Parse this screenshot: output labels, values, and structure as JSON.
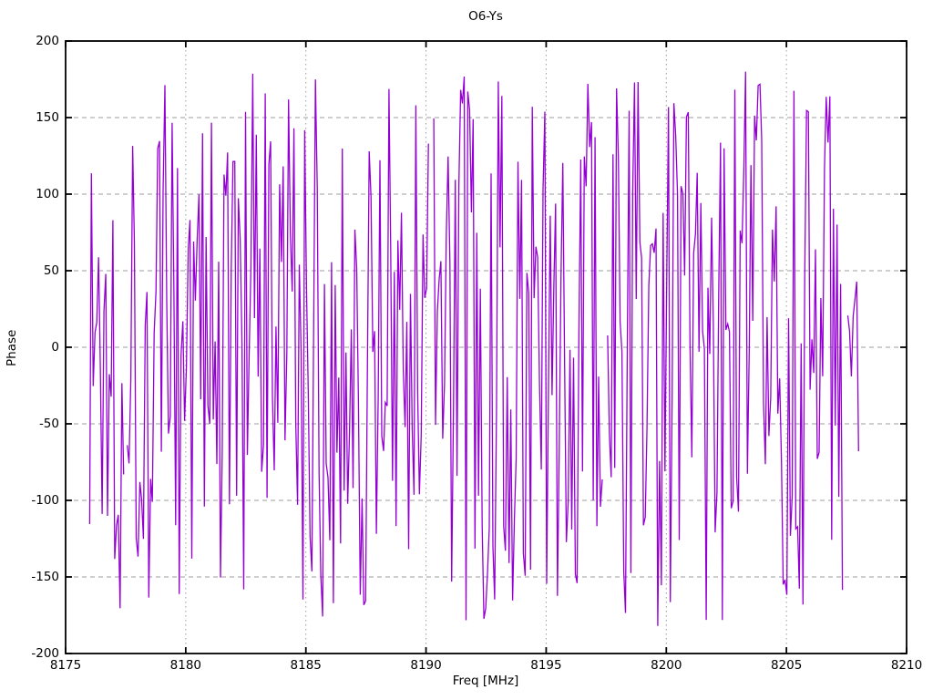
{
  "chart_data": {
    "type": "line",
    "title": "O6-Ys",
    "xlabel": "Freq [MHz]",
    "ylabel": "Phase",
    "xlim": [
      8175,
      8210
    ],
    "ylim": [
      -200,
      200
    ],
    "xticks": [
      8175,
      8180,
      8185,
      8190,
      8195,
      8200,
      8205,
      8210
    ],
    "yticks": [
      -200,
      -150,
      -100,
      -50,
      0,
      50,
      100,
      150,
      200
    ],
    "grid": true,
    "legend": "none",
    "background_color": "#ffffff",
    "border_color": "#000000",
    "grid_color": "#9c9c9c",
    "series": [
      {
        "name": "O6-Ys",
        "color": "#9400D3",
        "description": "densely sampled wrapped interferometric phase noise, approximately uniform over +/-180 degrees",
        "x_start": 8176.0,
        "x_end": 8208.0,
        "n_points": 430,
        "y_min": -183,
        "y_max": 183,
        "seed": 1337,
        "gap_probability": 0.015
      }
    ]
  }
}
